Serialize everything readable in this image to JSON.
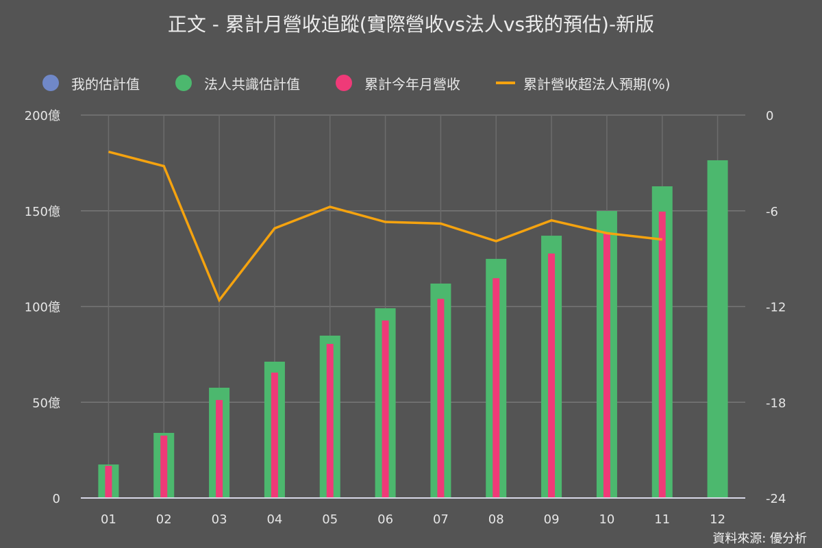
{
  "title": "正文 - 累計月營收追蹤(實際營收vs法人vs我的預估)-新版",
  "legend": [
    {
      "label": "我的估計值",
      "color": "#7088c8",
      "marker": "circle"
    },
    {
      "label": "法人共識估計值",
      "color": "#4cb86e",
      "marker": "circle"
    },
    {
      "label": "累計今年月營收",
      "color": "#ef3a78",
      "marker": "circle"
    },
    {
      "label": "累計營收超法人預期(%)",
      "color": "#f5a30f",
      "marker": "line"
    }
  ],
  "source": "資料來源: 優分析",
  "chart_data": {
    "type": "bar",
    "title": "正文 - 累計月營收追蹤(實際營收vs法人vs我的預估)-新版",
    "xlabel": "",
    "ylabel": "",
    "categories": [
      "01",
      "02",
      "03",
      "04",
      "05",
      "06",
      "07",
      "08",
      "09",
      "10",
      "11",
      "12"
    ],
    "left_axis": {
      "ticks": [
        "0",
        "50億",
        "100億",
        "150億",
        "200億"
      ],
      "ylim": [
        0,
        200
      ],
      "unit": "億"
    },
    "right_axis": {
      "ticks": [
        "-24",
        "-18",
        "-12",
        "-6",
        "0"
      ],
      "ylim": [
        -24,
        0
      ]
    },
    "grid": true,
    "legend_position": "top",
    "series": [
      {
        "name": "我的估計值",
        "type": "bar",
        "axis": "left",
        "color": "#7088c8",
        "values": [
          null,
          null,
          null,
          null,
          null,
          null,
          null,
          null,
          null,
          null,
          null,
          null
        ]
      },
      {
        "name": "法人共識估計值",
        "type": "bar",
        "axis": "left",
        "color": "#4cb86e",
        "values": [
          17.5,
          34,
          57.6,
          71.2,
          84.8,
          99.1,
          112,
          124.9,
          137,
          149.9,
          162.8,
          176.4
        ]
      },
      {
        "name": "累計今年月營收",
        "type": "bar",
        "axis": "left",
        "color": "#ef3a78",
        "values": [
          16.8,
          32.6,
          51.2,
          65.5,
          80.5,
          92.7,
          104,
          114.8,
          127.7,
          138.5,
          149.6,
          null
        ]
      },
      {
        "name": "累計營收超法人預期(%)",
        "type": "line",
        "axis": "right",
        "color": "#f5a30f",
        "values": [
          -2.3,
          -3.2,
          -11.6,
          -7.1,
          -5.75,
          -6.7,
          -6.8,
          -7.9,
          -6.6,
          -7.4,
          -7.8,
          null
        ]
      }
    ]
  }
}
